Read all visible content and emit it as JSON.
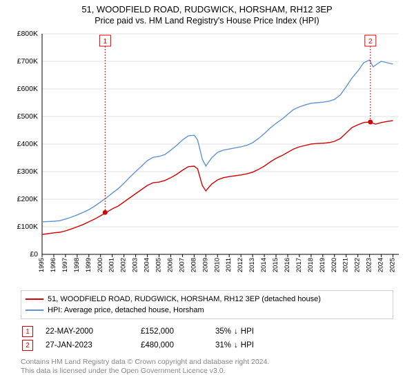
{
  "title": "51, WOODFIELD ROAD, RUDGWICK, HORSHAM, RH12 3EP",
  "subtitle": "Price paid vs. HM Land Registry's House Price Index (HPI)",
  "chart": {
    "type": "line",
    "background_color": "#ffffff",
    "grid_color": "#e0e0e0",
    "axis_color": "#000000",
    "y_label_prefix": "£",
    "ylim": [
      0,
      800000
    ],
    "ytick_step": 100000,
    "y_tick_labels": [
      "£0",
      "£100K",
      "£200K",
      "£300K",
      "£400K",
      "£500K",
      "£600K",
      "£700K",
      "£800K"
    ],
    "xlim": [
      1995,
      2025.5
    ],
    "x_ticks": [
      1995,
      1996,
      1997,
      1998,
      1999,
      2000,
      2001,
      2002,
      2003,
      2004,
      2005,
      2006,
      2007,
      2008,
      2009,
      2010,
      2011,
      2012,
      2013,
      2014,
      2015,
      2016,
      2017,
      2018,
      2019,
      2020,
      2021,
      2022,
      2023,
      2024,
      2025
    ],
    "x_tick_label_fontsize": 9.5,
    "y_tick_label_fontsize": 10.5,
    "line_width": 1.4,
    "series": [
      {
        "name": "property",
        "label": "51, WOODFIELD ROAD, RUDGWICK, HORSHAM, RH12 3EP (detached house)",
        "color": "#d40000",
        "data": [
          [
            1995,
            72000
          ],
          [
            1995.5,
            75000
          ],
          [
            1996,
            78000
          ],
          [
            1996.5,
            80000
          ],
          [
            1997,
            85000
          ],
          [
            1997.5,
            92000
          ],
          [
            1998,
            100000
          ],
          [
            1998.5,
            108000
          ],
          [
            1999,
            118000
          ],
          [
            1999.5,
            128000
          ],
          [
            2000,
            140000
          ],
          [
            2000.5,
            152000
          ],
          [
            2001,
            165000
          ],
          [
            2001.5,
            175000
          ],
          [
            2002,
            190000
          ],
          [
            2002.5,
            205000
          ],
          [
            2003,
            220000
          ],
          [
            2003.5,
            235000
          ],
          [
            2004,
            250000
          ],
          [
            2004.5,
            260000
          ],
          [
            2005,
            262000
          ],
          [
            2005.5,
            268000
          ],
          [
            2006,
            278000
          ],
          [
            2006.5,
            290000
          ],
          [
            2007,
            305000
          ],
          [
            2007.5,
            318000
          ],
          [
            2008,
            320000
          ],
          [
            2008.3,
            310000
          ],
          [
            2008.7,
            250000
          ],
          [
            2009,
            230000
          ],
          [
            2009.5,
            255000
          ],
          [
            2010,
            270000
          ],
          [
            2010.5,
            278000
          ],
          [
            2011,
            282000
          ],
          [
            2011.5,
            285000
          ],
          [
            2012,
            288000
          ],
          [
            2012.5,
            292000
          ],
          [
            2013,
            298000
          ],
          [
            2013.5,
            308000
          ],
          [
            2014,
            320000
          ],
          [
            2014.5,
            335000
          ],
          [
            2015,
            348000
          ],
          [
            2015.5,
            358000
          ],
          [
            2016,
            370000
          ],
          [
            2016.5,
            382000
          ],
          [
            2017,
            390000
          ],
          [
            2017.5,
            395000
          ],
          [
            2018,
            400000
          ],
          [
            2018.5,
            402000
          ],
          [
            2019,
            403000
          ],
          [
            2019.5,
            405000
          ],
          [
            2020,
            410000
          ],
          [
            2020.5,
            420000
          ],
          [
            2021,
            440000
          ],
          [
            2021.5,
            460000
          ],
          [
            2022,
            470000
          ],
          [
            2022.5,
            478000
          ],
          [
            2023,
            480000
          ],
          [
            2023.5,
            472000
          ],
          [
            2024,
            478000
          ],
          [
            2024.5,
            482000
          ],
          [
            2025,
            485000
          ]
        ]
      },
      {
        "name": "hpi",
        "label": "HPI: Average price, detached house, Horsham",
        "color": "#6092d6",
        "data": [
          [
            1995,
            118000
          ],
          [
            1995.5,
            119000
          ],
          [
            1996,
            120000
          ],
          [
            1996.5,
            122000
          ],
          [
            1997,
            128000
          ],
          [
            1997.5,
            135000
          ],
          [
            1998,
            143000
          ],
          [
            1998.5,
            152000
          ],
          [
            1999,
            162000
          ],
          [
            1999.5,
            175000
          ],
          [
            2000,
            190000
          ],
          [
            2000.5,
            205000
          ],
          [
            2001,
            222000
          ],
          [
            2001.5,
            238000
          ],
          [
            2002,
            258000
          ],
          [
            2002.5,
            280000
          ],
          [
            2003,
            300000
          ],
          [
            2003.5,
            320000
          ],
          [
            2004,
            340000
          ],
          [
            2004.5,
            352000
          ],
          [
            2005,
            355000
          ],
          [
            2005.5,
            362000
          ],
          [
            2006,
            378000
          ],
          [
            2006.5,
            395000
          ],
          [
            2007,
            415000
          ],
          [
            2007.5,
            430000
          ],
          [
            2008,
            432000
          ],
          [
            2008.3,
            415000
          ],
          [
            2008.7,
            345000
          ],
          [
            2009,
            320000
          ],
          [
            2009.5,
            350000
          ],
          [
            2010,
            370000
          ],
          [
            2010.5,
            378000
          ],
          [
            2011,
            382000
          ],
          [
            2011.5,
            386000
          ],
          [
            2012,
            390000
          ],
          [
            2012.5,
            395000
          ],
          [
            2013,
            405000
          ],
          [
            2013.5,
            420000
          ],
          [
            2014,
            438000
          ],
          [
            2014.5,
            458000
          ],
          [
            2015,
            475000
          ],
          [
            2015.5,
            490000
          ],
          [
            2016,
            508000
          ],
          [
            2016.5,
            525000
          ],
          [
            2017,
            535000
          ],
          [
            2017.5,
            542000
          ],
          [
            2018,
            548000
          ],
          [
            2018.5,
            550000
          ],
          [
            2019,
            552000
          ],
          [
            2019.5,
            555000
          ],
          [
            2020,
            562000
          ],
          [
            2020.5,
            578000
          ],
          [
            2021,
            608000
          ],
          [
            2021.5,
            640000
          ],
          [
            2022,
            665000
          ],
          [
            2022.5,
            695000
          ],
          [
            2023,
            705000
          ],
          [
            2023.3,
            680000
          ],
          [
            2023.7,
            692000
          ],
          [
            2024,
            700000
          ],
          [
            2024.5,
            695000
          ],
          [
            2025,
            690000
          ]
        ]
      }
    ],
    "sale_markers": [
      {
        "index": "1",
        "x": 2000.39,
        "y": 152000,
        "color": "#d40000"
      },
      {
        "index": "2",
        "x": 2023.07,
        "y": 480000,
        "color": "#d40000"
      }
    ],
    "marker_box_stroke": "#d40000",
    "marker_box_fill": "#ffffff",
    "marker_y_top": 800000
  },
  "legend": {
    "border_color": "#d0d0d0",
    "fontsize": 11
  },
  "sales": [
    {
      "index": "1",
      "date": "22-MAY-2000",
      "price": "£152,000",
      "delta": "35%",
      "arrow": "↓",
      "suffix": "HPI",
      "marker_color": "#d40000"
    },
    {
      "index": "2",
      "date": "27-JAN-2023",
      "price": "£480,000",
      "delta": "31%",
      "arrow": "↓",
      "suffix": "HPI",
      "marker_color": "#d40000"
    }
  ],
  "footer": {
    "line1": "Contains HM Land Registry data © Crown copyright and database right 2024.",
    "line2": "This data is licensed under the Open Government Licence v3.0.",
    "color": "#888888"
  }
}
